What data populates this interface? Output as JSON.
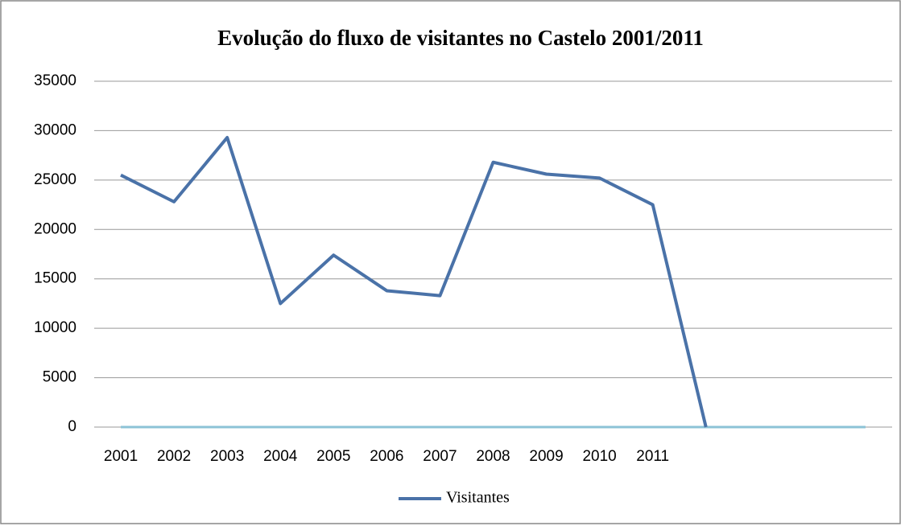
{
  "chart_data": {
    "type": "line",
    "title": "Evolução do fluxo de visitantes no Castelo 2001/2011",
    "categories": [
      "2001",
      "2002",
      "2003",
      "2004",
      "2005",
      "2006",
      "2007",
      "2008",
      "2009",
      "2010",
      "2011",
      null,
      null,
      null,
      null
    ],
    "series": [
      {
        "name": "Visitantes",
        "color": "#4a72a8",
        "values": [
          25500,
          22800,
          29300,
          12500,
          17400,
          13800,
          13300,
          26800,
          25600,
          25200,
          22500,
          0,
          null,
          null,
          null
        ]
      },
      {
        "color": "#8cc3d6",
        "values": [
          0,
          0,
          0,
          0,
          0,
          0,
          0,
          0,
          0,
          0,
          0,
          0,
          0,
          0,
          0
        ]
      }
    ],
    "ylim": [
      0,
      35000
    ],
    "yticks": [
      0,
      5000,
      10000,
      15000,
      20000,
      25000,
      30000,
      35000
    ],
    "grid": true,
    "legend": "bottom"
  }
}
